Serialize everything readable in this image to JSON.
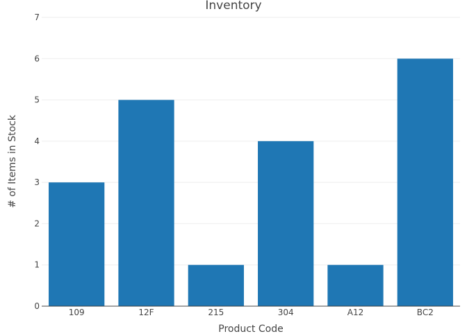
{
  "chart_data": {
    "type": "bar",
    "title": "Inventory",
    "xlabel": "Product Code",
    "ylabel": "# of Items in Stock",
    "categories": [
      "109",
      "12F",
      "215",
      "304",
      "A12",
      "BC2"
    ],
    "values": [
      3,
      5,
      1,
      4,
      1,
      6
    ],
    "ylim": [
      0,
      7
    ],
    "yticks": [
      0,
      1,
      2,
      3,
      4,
      5,
      6,
      7
    ],
    "grid": true,
    "bar_color": "#1f77b4"
  }
}
